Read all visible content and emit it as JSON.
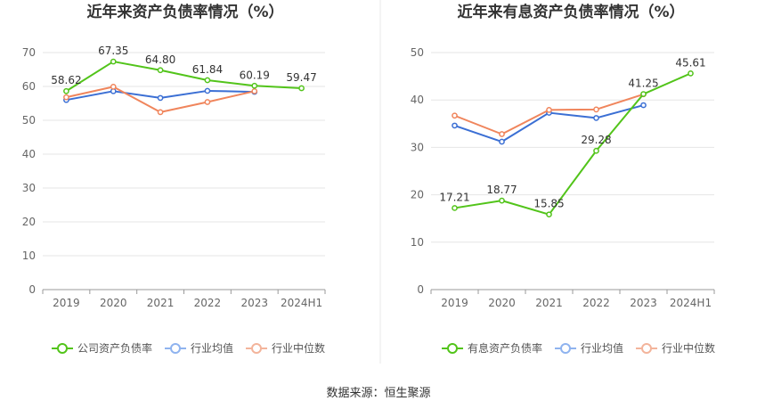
{
  "colors": {
    "company": "#52c41a",
    "avg": "#3b6fd4",
    "median": "#f0855c",
    "legend_avg": "#8fb3ef",
    "legend_median": "#f3b49b",
    "grid": "#e6e6e6",
    "axis": "#999999",
    "divider": "#e8e8e8"
  },
  "source": "数据来源：恒生聚源",
  "chart_data": [
    {
      "type": "line",
      "title": "近年来资产负债率情况（%）",
      "categories": [
        "2019",
        "2020",
        "2021",
        "2022",
        "2023",
        "2024H1"
      ],
      "ylim": [
        0,
        70
      ],
      "yticks": [
        0,
        10,
        20,
        30,
        40,
        50,
        60,
        70
      ],
      "grid": true,
      "legend_position": "bottom",
      "series": [
        {
          "name": "公司资产负债率",
          "role": "company",
          "values": [
            58.62,
            67.35,
            64.8,
            61.84,
            60.19,
            59.47
          ],
          "labels": [
            "58.62",
            "67.35",
            "64.80",
            "61.84",
            "60.19",
            "59.47"
          ]
        },
        {
          "name": "行业均值",
          "role": "avg",
          "values": [
            56.0,
            58.6,
            56.6,
            58.7,
            58.4,
            null
          ]
        },
        {
          "name": "行业中位数",
          "role": "median",
          "values": [
            56.8,
            59.9,
            52.4,
            55.4,
            58.6,
            null
          ]
        }
      ]
    },
    {
      "type": "line",
      "title": "近年来有息资产负债率情况（%）",
      "categories": [
        "2019",
        "2020",
        "2021",
        "2022",
        "2023",
        "2024H1"
      ],
      "ylim": [
        0,
        50
      ],
      "yticks": [
        0,
        10,
        20,
        30,
        40,
        50
      ],
      "grid": true,
      "legend_position": "bottom",
      "series": [
        {
          "name": "有息资产负债率",
          "role": "company",
          "values": [
            17.21,
            18.77,
            15.85,
            29.28,
            41.25,
            45.61
          ],
          "labels": [
            "17.21",
            "18.77",
            "15.85",
            "29.28",
            "41.25",
            "45.61"
          ]
        },
        {
          "name": "行业均值",
          "role": "avg",
          "values": [
            34.6,
            31.2,
            37.3,
            36.2,
            38.9,
            null
          ]
        },
        {
          "name": "行业中位数",
          "role": "median",
          "values": [
            36.7,
            32.8,
            37.9,
            38.0,
            41.2,
            null
          ]
        }
      ]
    }
  ]
}
